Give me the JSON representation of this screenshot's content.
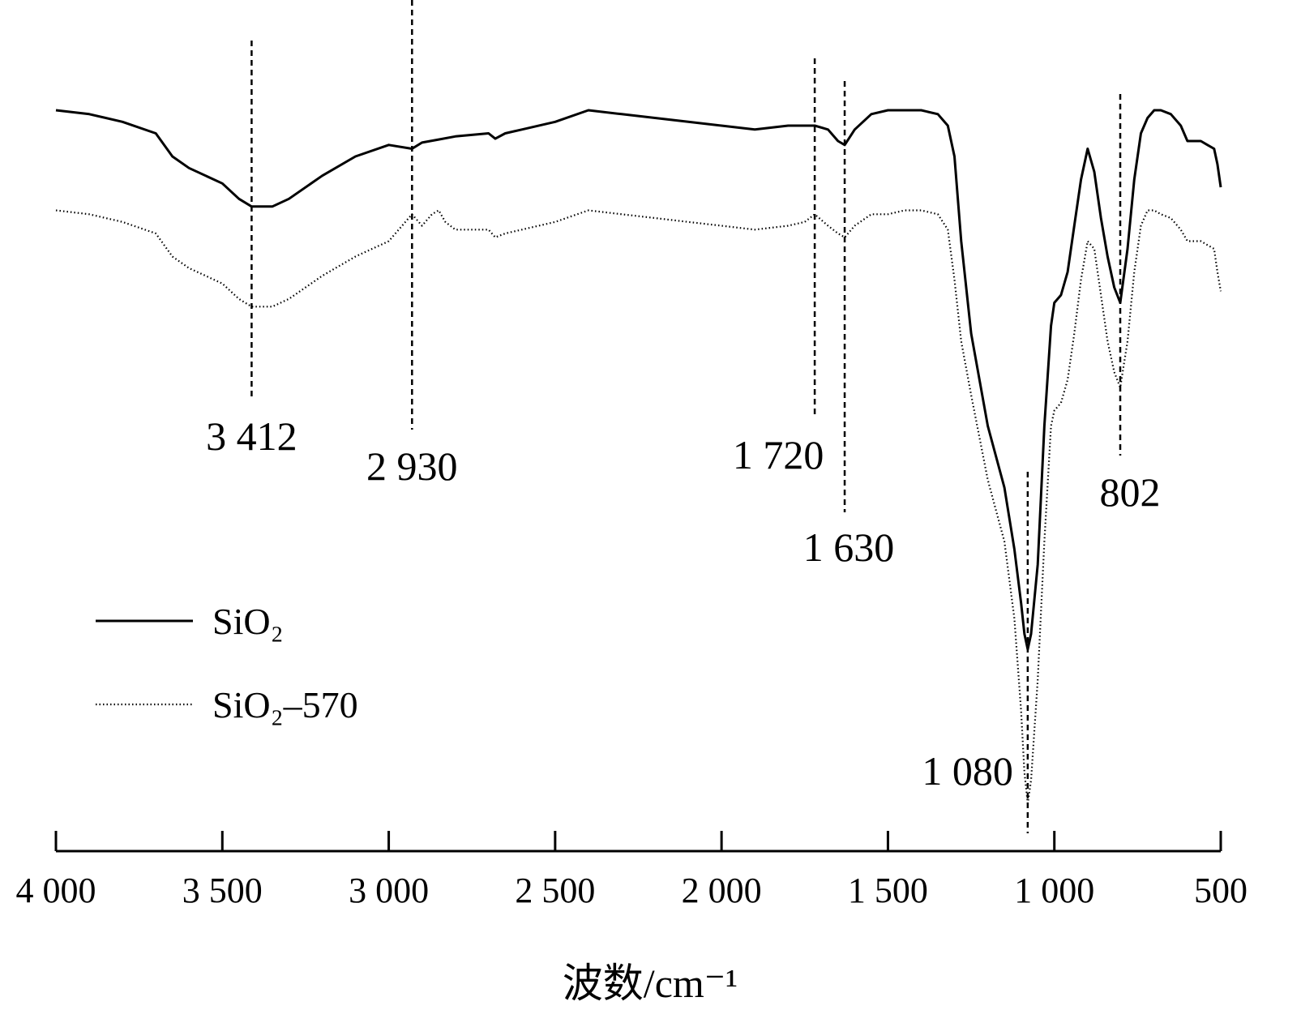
{
  "chart_data": {
    "type": "line",
    "xlabel": "波数/cm⁻¹",
    "xlim": [
      4000,
      500
    ],
    "x_reversed": true,
    "xticks": [
      4000,
      3500,
      3000,
      2500,
      2000,
      1500,
      1000,
      500
    ],
    "xtick_labels": [
      "4 000",
      "3 500",
      "3 000",
      "2 500",
      "2 000",
      "1 500",
      "1 000",
      "500"
    ],
    "y_axis_shown": false,
    "ylim": [
      0,
      100
    ],
    "grid": false,
    "legend_position": "lower-left",
    "series": [
      {
        "name": "SiO₂",
        "style": "solid",
        "x": [
          4000,
          3900,
          3800,
          3700,
          3650,
          3600,
          3500,
          3450,
          3412,
          3350,
          3300,
          3200,
          3100,
          3000,
          2930,
          2900,
          2850,
          2800,
          2700,
          2680,
          2650,
          2600,
          2500,
          2400,
          2300,
          2200,
          2100,
          2000,
          1900,
          1800,
          1750,
          1720,
          1680,
          1650,
          1630,
          1600,
          1550,
          1500,
          1450,
          1400,
          1350,
          1320,
          1300,
          1280,
          1250,
          1200,
          1150,
          1120,
          1100,
          1090,
          1080,
          1070,
          1050,
          1030,
          1010,
          1000,
          980,
          960,
          940,
          920,
          900,
          880,
          860,
          840,
          820,
          802,
          780,
          760,
          740,
          720,
          700,
          680,
          650,
          620,
          600,
          560,
          540,
          520,
          510,
          500
        ],
        "y": [
          92,
          91.5,
          90.5,
          89,
          86,
          84.5,
          82.5,
          80.5,
          79.5,
          79.5,
          80.5,
          83.5,
          86,
          87.5,
          87,
          87.8,
          88.2,
          88.6,
          89,
          88.3,
          89,
          89.5,
          90.5,
          92,
          91.5,
          91,
          90.5,
          90,
          89.5,
          90,
          90,
          90,
          89.5,
          88,
          87.5,
          89.5,
          91.5,
          92,
          92,
          92,
          91.5,
          90,
          86,
          75,
          63,
          51,
          43,
          35,
          28,
          24,
          22,
          24,
          33,
          51,
          64,
          67,
          68,
          71,
          77,
          83,
          87,
          84,
          78,
          73,
          69,
          67,
          74,
          83,
          89,
          91,
          92,
          92,
          91.5,
          90,
          88,
          88,
          87.5,
          87,
          85,
          82
        ]
      },
      {
        "name": "SiO₂–570",
        "style": "dotted",
        "x": [
          4000,
          3900,
          3800,
          3700,
          3650,
          3600,
          3500,
          3450,
          3412,
          3350,
          3300,
          3200,
          3100,
          3000,
          2950,
          2930,
          2900,
          2870,
          2850,
          2830,
          2800,
          2700,
          2680,
          2650,
          2600,
          2500,
          2400,
          2300,
          2200,
          2100,
          2000,
          1900,
          1800,
          1750,
          1720,
          1680,
          1650,
          1630,
          1600,
          1550,
          1500,
          1450,
          1400,
          1350,
          1320,
          1300,
          1280,
          1250,
          1200,
          1150,
          1120,
          1100,
          1090,
          1080,
          1070,
          1050,
          1030,
          1010,
          1000,
          980,
          960,
          940,
          920,
          900,
          880,
          860,
          840,
          820,
          802,
          780,
          760,
          740,
          720,
          700,
          680,
          650,
          620,
          600,
          560,
          540,
          520,
          510,
          500
        ],
        "y": [
          79,
          78.5,
          77.5,
          76,
          73,
          71.5,
          69.5,
          67.5,
          66.5,
          66.5,
          67.5,
          70.5,
          73,
          75,
          77.5,
          78.5,
          77,
          78.5,
          79,
          77.5,
          76.5,
          76.5,
          75.5,
          76,
          76.5,
          77.5,
          79,
          78.5,
          78,
          77.5,
          77,
          76.5,
          77,
          77.5,
          78.5,
          77,
          76,
          75.5,
          77,
          78.5,
          78.5,
          79,
          79,
          78.5,
          76.5,
          70,
          62,
          55,
          44,
          36,
          26,
          14,
          6,
          2,
          5,
          18,
          36,
          51,
          53,
          54,
          57,
          63,
          70,
          75,
          74,
          68,
          62,
          58,
          56,
          62,
          71,
          77,
          79,
          79,
          78.5,
          78,
          76.5,
          75,
          75,
          74.5,
          74,
          71,
          68.5
        ]
      }
    ],
    "annotations": [
      {
        "x": 3412,
        "label": "3 412"
      },
      {
        "x": 2930,
        "label": "2 930"
      },
      {
        "x": 1720,
        "label": "1 720"
      },
      {
        "x": 1630,
        "label": "1 630"
      },
      {
        "x": 1080,
        "label": "1 080"
      },
      {
        "x": 802,
        "label": "802"
      }
    ]
  }
}
